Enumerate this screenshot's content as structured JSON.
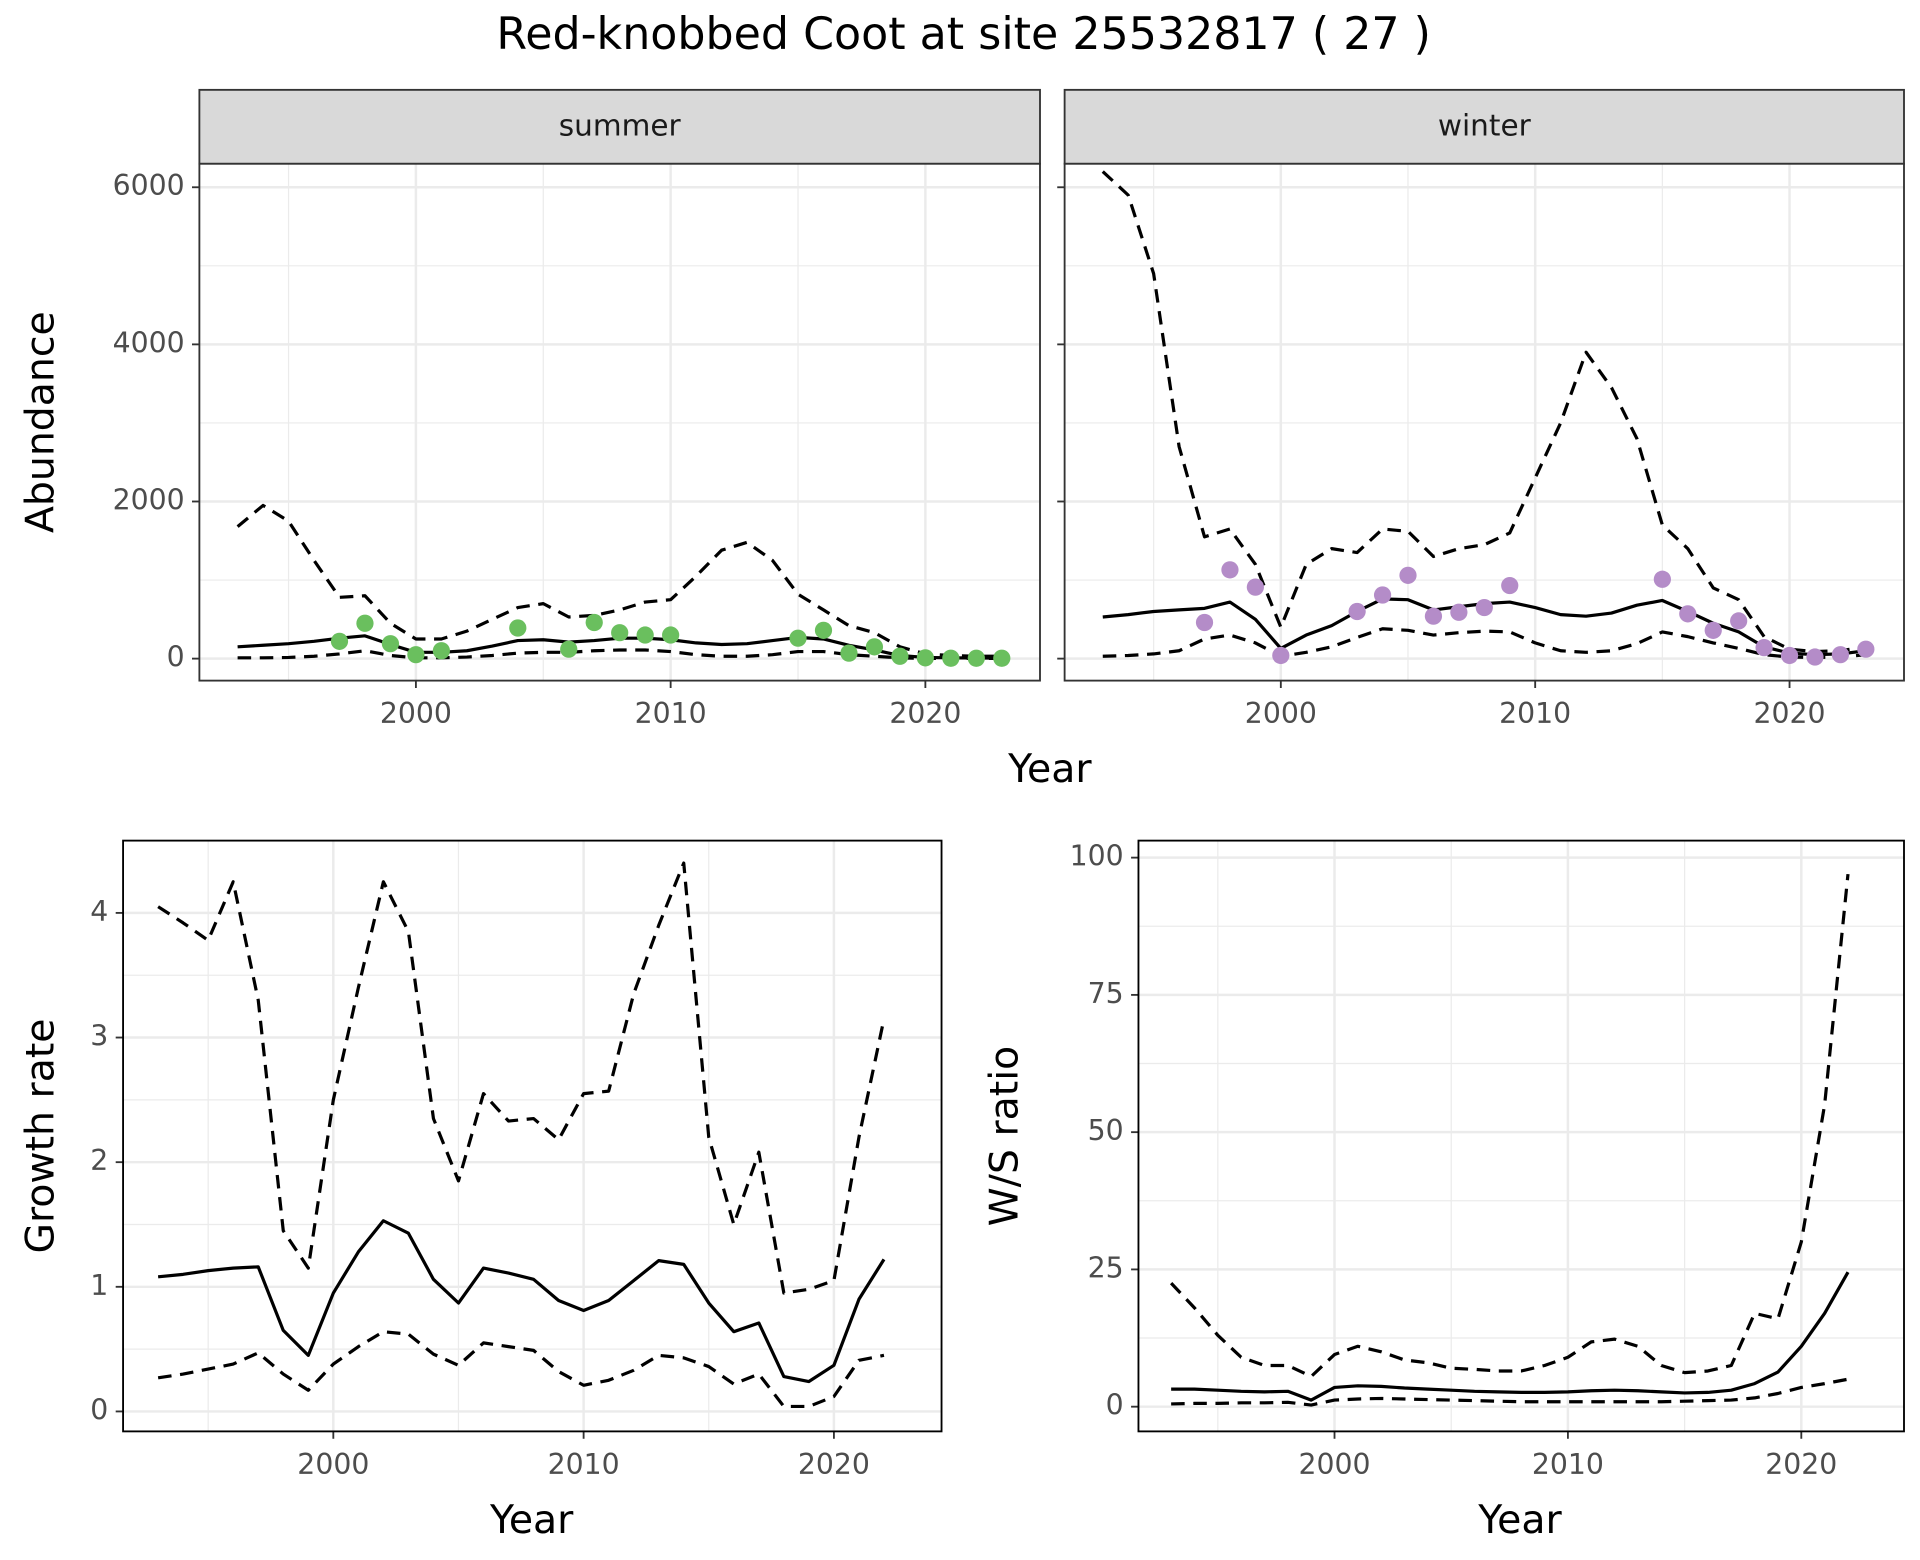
{
  "title": "Red-knobbed Coot at site 25532817 ( 27 )",
  "xlabel_top": "Year",
  "chart_data": [
    {
      "type": "line",
      "strip": "summer",
      "ylabel": "Abundance",
      "show_ytick_labels": true,
      "x": [
        1993,
        1994,
        1995,
        1996,
        1997,
        1998,
        1999,
        2000,
        2001,
        2002,
        2003,
        2004,
        2005,
        2006,
        2007,
        2008,
        2009,
        2010,
        2011,
        2012,
        2013,
        2014,
        2015,
        2016,
        2017,
        2018,
        2019,
        2020,
        2021,
        2022,
        2023
      ],
      "xlim": [
        1991.5,
        2024.5
      ],
      "xticks": [
        2000,
        2010,
        2020
      ],
      "xminor": [
        1995,
        2005,
        2015
      ],
      "ylim": [
        -280,
        6300
      ],
      "yticks": [
        0,
        2000,
        4000,
        6000
      ],
      "yminor": [
        1000,
        3000,
        5000
      ],
      "grid": true,
      "series": [
        {
          "color": "#000000",
          "dash": false,
          "values": [
            150,
            170,
            190,
            220,
            260,
            290,
            180,
            80,
            80,
            100,
            160,
            230,
            240,
            210,
            230,
            260,
            260,
            240,
            200,
            180,
            190,
            230,
            270,
            250,
            170,
            110,
            40,
            15,
            10,
            8,
            8
          ]
        },
        {
          "color": "#000000",
          "dash": true,
          "values": [
            1680,
            1950,
            1750,
            1250,
            780,
            800,
            450,
            250,
            250,
            350,
            500,
            650,
            700,
            530,
            550,
            620,
            720,
            750,
            1050,
            1380,
            1480,
            1250,
            820,
            620,
            420,
            330,
            150,
            60,
            40,
            30,
            30
          ]
        },
        {
          "color": "#000000",
          "dash": true,
          "values": [
            10,
            10,
            15,
            30,
            60,
            100,
            40,
            10,
            10,
            20,
            40,
            70,
            80,
            80,
            100,
            110,
            110,
            90,
            50,
            30,
            30,
            50,
            90,
            90,
            50,
            30,
            10,
            3,
            2,
            2,
            2
          ]
        },
        {
          "color": "#6abf5e",
          "points": true,
          "values": [
            null,
            null,
            null,
            null,
            220,
            450,
            190,
            50,
            100,
            null,
            null,
            390,
            null,
            120,
            460,
            330,
            300,
            300,
            null,
            null,
            null,
            null,
            260,
            360,
            70,
            150,
            30,
            10,
            5,
            5,
            5
          ]
        }
      ]
    },
    {
      "type": "line",
      "strip": "winter",
      "show_ytick_labels": false,
      "x": [
        1993,
        1994,
        1995,
        1996,
        1997,
        1998,
        1999,
        2000,
        2001,
        2002,
        2003,
        2004,
        2005,
        2006,
        2007,
        2008,
        2009,
        2010,
        2011,
        2012,
        2013,
        2014,
        2015,
        2016,
        2017,
        2018,
        2019,
        2020,
        2021,
        2022,
        2023
      ],
      "xlim": [
        1991.5,
        2024.5
      ],
      "xticks": [
        2000,
        2010,
        2020
      ],
      "xminor": [
        1995,
        2005,
        2015
      ],
      "ylim": [
        -280,
        6300
      ],
      "yticks": [
        0,
        2000,
        4000,
        6000
      ],
      "yminor": [
        1000,
        3000,
        5000
      ],
      "grid": true,
      "series": [
        {
          "color": "#000000",
          "dash": false,
          "values": [
            530,
            560,
            600,
            620,
            640,
            720,
            500,
            130,
            300,
            420,
            600,
            760,
            750,
            620,
            660,
            700,
            720,
            650,
            560,
            540,
            580,
            680,
            740,
            600,
            450,
            340,
            150,
            70,
            50,
            60,
            100
          ]
        },
        {
          "color": "#000000",
          "dash": true,
          "values": [
            6200,
            5900,
            4900,
            2700,
            1550,
            1650,
            1200,
            400,
            1200,
            1400,
            1350,
            1650,
            1620,
            1300,
            1400,
            1450,
            1600,
            2300,
            3000,
            3900,
            3450,
            2800,
            1700,
            1400,
            900,
            750,
            280,
            120,
            90,
            100,
            150
          ]
        },
        {
          "color": "#000000",
          "dash": true,
          "values": [
            30,
            40,
            60,
            100,
            250,
            300,
            200,
            30,
            80,
            150,
            270,
            380,
            360,
            300,
            330,
            350,
            340,
            200,
            100,
            80,
            100,
            190,
            340,
            280,
            200,
            130,
            50,
            20,
            15,
            20,
            50
          ]
        },
        {
          "color": "#b48cc8",
          "points": true,
          "values": [
            null,
            null,
            null,
            null,
            460,
            1130,
            910,
            40,
            null,
            null,
            600,
            810,
            1060,
            540,
            590,
            650,
            930,
            null,
            null,
            null,
            null,
            null,
            1010,
            570,
            360,
            480,
            140,
            40,
            20,
            50,
            120
          ]
        }
      ]
    },
    {
      "type": "line",
      "xlabel": "Year",
      "ylabel": "Growth rate",
      "show_ytick_labels": true,
      "x": [
        1993,
        1994,
        1995,
        1996,
        1997,
        1998,
        1999,
        2000,
        2001,
        2002,
        2003,
        2004,
        2005,
        2006,
        2007,
        2008,
        2009,
        2010,
        2011,
        2012,
        2013,
        2014,
        2015,
        2016,
        2017,
        2018,
        2019,
        2020,
        2021,
        2022
      ],
      "xlim": [
        1991.6,
        2024.3
      ],
      "xticks": [
        2000,
        2010,
        2020
      ],
      "xminor": [
        1995,
        2005,
        2015
      ],
      "ylim": [
        -0.16,
        4.58
      ],
      "yticks": [
        0,
        1,
        2,
        3,
        4
      ],
      "yminor": [
        0.5,
        1.5,
        2.5,
        3.5
      ],
      "grid": true,
      "series": [
        {
          "color": "#000000",
          "dash": false,
          "values": [
            1.08,
            1.1,
            1.13,
            1.15,
            1.16,
            0.65,
            0.45,
            0.95,
            1.28,
            1.53,
            1.43,
            1.06,
            0.87,
            1.15,
            1.11,
            1.06,
            0.89,
            0.81,
            0.89,
            1.05,
            1.21,
            1.18,
            0.87,
            0.64,
            0.71,
            0.28,
            0.24,
            0.37,
            0.9,
            1.22
          ]
        },
        {
          "color": "#000000",
          "dash": true,
          "values": [
            4.05,
            3.92,
            3.78,
            4.25,
            3.3,
            1.45,
            1.15,
            2.5,
            3.4,
            4.25,
            3.85,
            2.35,
            1.85,
            2.55,
            2.33,
            2.35,
            2.18,
            2.55,
            2.57,
            3.35,
            3.9,
            4.4,
            2.2,
            1.5,
            2.08,
            0.95,
            0.98,
            1.05,
            2.2,
            3.15
          ]
        },
        {
          "color": "#000000",
          "dash": true,
          "values": [
            0.27,
            0.3,
            0.34,
            0.38,
            0.47,
            0.3,
            0.17,
            0.38,
            0.52,
            0.64,
            0.62,
            0.46,
            0.37,
            0.55,
            0.52,
            0.49,
            0.32,
            0.21,
            0.25,
            0.33,
            0.45,
            0.43,
            0.36,
            0.22,
            0.3,
            0.04,
            0.04,
            0.12,
            0.41,
            0.45
          ]
        }
      ]
    },
    {
      "type": "line",
      "xlabel": "Year",
      "ylabel": "W/S ratio",
      "show_ytick_labels": true,
      "x": [
        1993,
        1994,
        1995,
        1996,
        1997,
        1998,
        1999,
        2000,
        2001,
        2002,
        2003,
        2004,
        2005,
        2006,
        2007,
        2008,
        2009,
        2010,
        2011,
        2012,
        2013,
        2014,
        2015,
        2016,
        2017,
        2018,
        2019,
        2020,
        2021,
        2022
      ],
      "xlim": [
        1991.6,
        2024.4
      ],
      "xticks": [
        2000,
        2010,
        2020
      ],
      "xminor": [
        1995,
        2005,
        2015
      ],
      "ylim": [
        -4.5,
        103.1
      ],
      "yticks": [
        0,
        25,
        50,
        75,
        100
      ],
      "yminor": [
        12.5,
        37.5,
        62.5,
        87.5
      ],
      "grid": true,
      "series": [
        {
          "color": "#000000",
          "dash": false,
          "values": [
            3.2,
            3.2,
            3.0,
            2.8,
            2.7,
            2.8,
            1.2,
            3.5,
            3.8,
            3.7,
            3.4,
            3.2,
            3.0,
            2.8,
            2.7,
            2.6,
            2.6,
            2.7,
            2.9,
            3.0,
            2.9,
            2.7,
            2.5,
            2.6,
            3.0,
            4.2,
            6.3,
            11,
            17,
            24.5
          ]
        },
        {
          "color": "#000000",
          "dash": true,
          "values": [
            22.5,
            18,
            13,
            9,
            7.5,
            7.5,
            5.5,
            9.5,
            11,
            10,
            8.5,
            8,
            7,
            6.8,
            6.5,
            6.5,
            7.5,
            9,
            11.8,
            12.3,
            11,
            7.5,
            6.2,
            6.5,
            7.5,
            17,
            16,
            30,
            55,
            97
          ]
        },
        {
          "color": "#000000",
          "dash": true,
          "values": [
            0.5,
            0.6,
            0.6,
            0.7,
            0.7,
            0.8,
            0.3,
            1.2,
            1.4,
            1.5,
            1.4,
            1.3,
            1.2,
            1.1,
            1.0,
            0.9,
            0.9,
            0.9,
            0.9,
            0.9,
            0.9,
            0.9,
            1.0,
            1.1,
            1.2,
            1.6,
            2.4,
            3.5,
            4.2,
            5.0
          ]
        }
      ]
    }
  ]
}
